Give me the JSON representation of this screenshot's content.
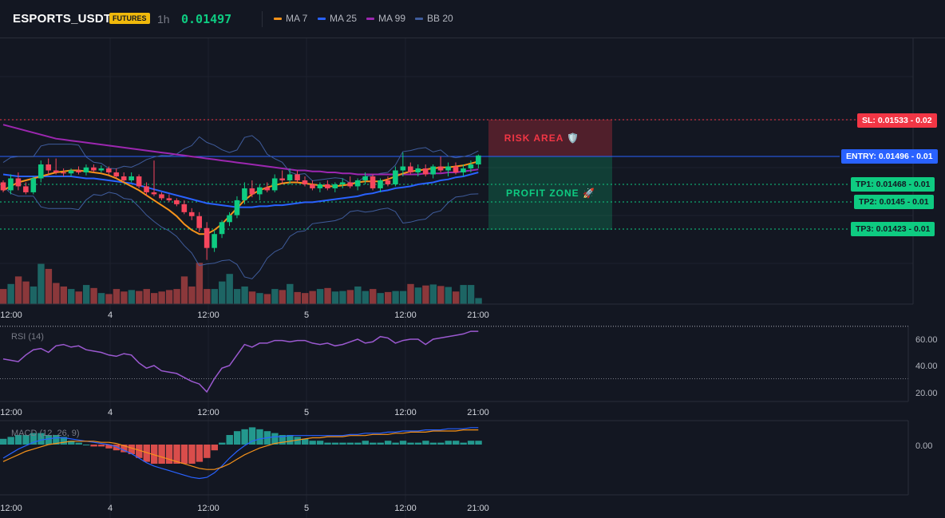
{
  "header": {
    "symbol": "ESPORTS_USDT",
    "badge": "FUTURES",
    "timeframe": "1h",
    "price": "0.01497",
    "legend": [
      {
        "label": "MA 7",
        "color": "#f7931a"
      },
      {
        "label": "MA 25",
        "color": "#2962ff"
      },
      {
        "label": "MA 99",
        "color": "#9c27b0"
      },
      {
        "label": "BB 20",
        "color": "#3f5c9c"
      }
    ]
  },
  "time_axis": [
    "12:00",
    "4",
    "12:00",
    "5",
    "12:00",
    "21:00"
  ],
  "levels": {
    "sl": {
      "label": "SL: 0.01533 - 0.02",
      "color": "#f23645"
    },
    "entry": {
      "label": "ENTRY: 0.01496 - 0.01",
      "color": "#2962ff"
    },
    "tp1": {
      "label": "TP1: 0.01468 - 0.01",
      "color": "#0ecb81"
    },
    "tp2": {
      "label": "TP2: 0.0145 - 0.01",
      "color": "#0ecb81"
    },
    "tp3": {
      "label": "TP3: 0.01423 - 0.01",
      "color": "#0ecb81"
    }
  },
  "zones": {
    "risk": "RISK AREA 🛡️",
    "profit": "PROFIT ZONE 🚀"
  },
  "rsi": {
    "label": "RSI (14)",
    "ticks": [
      "60.00",
      "40.00",
      "20.00"
    ]
  },
  "macd": {
    "label": "MACD (12, 26, 9)",
    "ticks": [
      "0.00"
    ]
  },
  "chart_data": {
    "type": "candlestick",
    "price_range": [
      0.0138,
      0.0155
    ],
    "candles": [
      [
        0.0147,
        0.01472,
        0.0146,
        0.01462
      ],
      [
        0.01462,
        0.01478,
        0.01458,
        0.01474
      ],
      [
        0.01474,
        0.0148,
        0.01462,
        0.01466
      ],
      [
        0.01466,
        0.0147,
        0.01458,
        0.0146
      ],
      [
        0.0146,
        0.01476,
        0.01458,
        0.01474
      ],
      [
        0.01474,
        0.01492,
        0.0147,
        0.01488
      ],
      [
        0.01488,
        0.01494,
        0.01478,
        0.01482
      ],
      [
        0.01482,
        0.01494,
        0.01478,
        0.0148
      ],
      [
        0.0148,
        0.01484,
        0.01476,
        0.01479
      ],
      [
        0.01479,
        0.01484,
        0.01476,
        0.01482
      ],
      [
        0.01482,
        0.01486,
        0.01478,
        0.0148
      ],
      [
        0.0148,
        0.01488,
        0.01477,
        0.01485
      ],
      [
        0.01485,
        0.01488,
        0.0148,
        0.01482
      ],
      [
        0.01482,
        0.01487,
        0.0148,
        0.01484
      ],
      [
        0.01484,
        0.01486,
        0.01478,
        0.0148
      ],
      [
        0.0148,
        0.01484,
        0.01474,
        0.01476
      ],
      [
        0.01476,
        0.0148,
        0.0147,
        0.01472
      ],
      [
        0.01472,
        0.0148,
        0.0147,
        0.01476
      ],
      [
        0.01476,
        0.01478,
        0.01464,
        0.01466
      ],
      [
        0.01466,
        0.0147,
        0.01456,
        0.0146
      ],
      [
        0.0146,
        0.01492,
        0.01456,
        0.01458
      ],
      [
        0.01458,
        0.0146,
        0.01452,
        0.01454
      ],
      [
        0.01454,
        0.01458,
        0.0145,
        0.01452
      ],
      [
        0.01452,
        0.01454,
        0.01446,
        0.01448
      ],
      [
        0.01448,
        0.01452,
        0.01438,
        0.0144
      ],
      [
        0.0144,
        0.01444,
        0.01432,
        0.01436
      ],
      [
        0.01436,
        0.0144,
        0.0142,
        0.01424
      ],
      [
        0.01424,
        0.0143,
        0.01392,
        0.01404
      ],
      [
        0.01404,
        0.01422,
        0.014,
        0.01418
      ],
      [
        0.01418,
        0.01432,
        0.01414,
        0.0143
      ],
      [
        0.0143,
        0.0144,
        0.01426,
        0.01437
      ],
      [
        0.01437,
        0.01456,
        0.01434,
        0.01452
      ],
      [
        0.01452,
        0.0147,
        0.01448,
        0.01464
      ],
      [
        0.01464,
        0.01472,
        0.01455,
        0.01458
      ],
      [
        0.01458,
        0.01468,
        0.01452,
        0.01465
      ],
      [
        0.01465,
        0.0147,
        0.0146,
        0.01462
      ],
      [
        0.01462,
        0.01478,
        0.0146,
        0.01474
      ],
      [
        0.01474,
        0.01482,
        0.01468,
        0.01472
      ],
      [
        0.01472,
        0.01484,
        0.01468,
        0.01478
      ],
      [
        0.01478,
        0.01482,
        0.0147,
        0.01472
      ],
      [
        0.01472,
        0.01476,
        0.01466,
        0.01468
      ],
      [
        0.01468,
        0.01472,
        0.01462,
        0.01464
      ],
      [
        0.01464,
        0.0147,
        0.0146,
        0.01468
      ],
      [
        0.01468,
        0.01472,
        0.01462,
        0.01464
      ],
      [
        0.01464,
        0.0147,
        0.0146,
        0.01468
      ],
      [
        0.01468,
        0.01474,
        0.01464,
        0.0147
      ],
      [
        0.0147,
        0.01476,
        0.01464,
        0.01466
      ],
      [
        0.01466,
        0.01474,
        0.01462,
        0.01472
      ],
      [
        0.01472,
        0.0148,
        0.01468,
        0.01476
      ],
      [
        0.01476,
        0.01478,
        0.01462,
        0.01464
      ],
      [
        0.01464,
        0.01474,
        0.0146,
        0.01472
      ],
      [
        0.01472,
        0.01476,
        0.01466,
        0.01468
      ],
      [
        0.01468,
        0.01486,
        0.01466,
        0.01482
      ],
      [
        0.01482,
        0.015,
        0.01476,
        0.01486
      ],
      [
        0.01486,
        0.0149,
        0.01478,
        0.0148
      ],
      [
        0.0148,
        0.01488,
        0.01476,
        0.01484
      ],
      [
        0.01484,
        0.01488,
        0.01476,
        0.01478
      ],
      [
        0.01478,
        0.01488,
        0.01474,
        0.01486
      ],
      [
        0.01486,
        0.01496,
        0.0148,
        0.01482
      ],
      [
        0.01482,
        0.0149,
        0.01476,
        0.01486
      ],
      [
        0.01486,
        0.0149,
        0.01478,
        0.0148
      ],
      [
        0.0148,
        0.01488,
        0.01476,
        0.01484
      ],
      [
        0.01484,
        0.01492,
        0.0148,
        0.01488
      ],
      [
        0.01488,
        0.01498,
        0.01484,
        0.01497
      ]
    ],
    "volume": [
      30,
      40,
      55,
      45,
      35,
      80,
      70,
      42,
      35,
      30,
      25,
      38,
      32,
      22,
      20,
      30,
      25,
      28,
      26,
      30,
      22,
      25,
      28,
      30,
      55,
      35,
      82,
      30,
      30,
      45,
      60,
      30,
      35,
      25,
      22,
      20,
      30,
      28,
      40,
      24,
      22,
      26,
      30,
      32,
      25,
      26,
      28,
      35,
      26,
      30,
      22,
      24,
      26,
      26,
      40,
      33,
      37,
      39,
      36,
      34,
      25,
      38,
      38,
      12
    ],
    "volume_max": 100,
    "ma7": [
      0.01462,
      0.01466,
      0.0147,
      0.01472,
      0.01474,
      0.01476,
      0.01478,
      0.0148,
      0.01481,
      0.01482,
      0.01482,
      0.01481,
      0.0148,
      0.01479,
      0.01477,
      0.01474,
      0.0147,
      0.01466,
      0.01462,
      0.01457,
      0.01452,
      0.01447,
      0.01442,
      0.01436,
      0.01428,
      0.01422,
      0.01418,
      0.01418,
      0.01422,
      0.01428,
      0.01436,
      0.01444,
      0.01452,
      0.01458,
      0.01462,
      0.01465,
      0.01467,
      0.01469,
      0.0147,
      0.0147,
      0.01469,
      0.01468,
      0.01467,
      0.01466,
      0.01466,
      0.01467,
      0.01468,
      0.0147,
      0.01471,
      0.01471,
      0.01471,
      0.01473,
      0.01476,
      0.01479,
      0.01481,
      0.01482,
      0.01483,
      0.01484,
      0.01485,
      0.01485,
      0.01486,
      0.01487,
      0.01489,
      0.01491
    ],
    "ma25": [
      0.01478,
      0.01477,
      0.01476,
      0.01476,
      0.01476,
      0.01476,
      0.01476,
      0.01476,
      0.01476,
      0.01476,
      0.01475,
      0.01474,
      0.01474,
      0.01473,
      0.01472,
      0.01471,
      0.0147,
      0.01469,
      0.01467,
      0.01465,
      0.01463,
      0.01461,
      0.01459,
      0.01457,
      0.01455,
      0.01453,
      0.01451,
      0.01449,
      0.01448,
      0.01447,
      0.01446,
      0.01445,
      0.01445,
      0.01445,
      0.01446,
      0.01446,
      0.01447,
      0.01447,
      0.01448,
      0.01449,
      0.0145,
      0.0145,
      0.01451,
      0.01452,
      0.01453,
      0.01454,
      0.01455,
      0.01456,
      0.01458,
      0.01459,
      0.01461,
      0.01462,
      0.01464,
      0.01465,
      0.01466,
      0.01468,
      0.01469,
      0.0147,
      0.01472,
      0.01473,
      0.01475,
      0.01476,
      0.01478,
      0.0148
    ],
    "ma99": [
      0.01528,
      0.01526,
      0.01524,
      0.01522,
      0.0152,
      0.01518,
      0.01516,
      0.01514,
      0.01513,
      0.01512,
      0.01511,
      0.0151,
      0.01509,
      0.01508,
      0.01507,
      0.01506,
      0.01505,
      0.01504,
      0.01503,
      0.01502,
      0.01501,
      0.015,
      0.01499,
      0.01498,
      0.01497,
      0.01496,
      0.01495,
      0.01494,
      0.01493,
      0.01492,
      0.01491,
      0.0149,
      0.01489,
      0.01488,
      0.01487,
      0.01486,
      0.01485,
      0.01484,
      0.01483,
      0.01482,
      0.01482,
      0.01481,
      0.01481,
      0.0148,
      0.0148,
      0.01479,
      0.01479,
      0.01478,
      0.01478,
      0.01478,
      0.01478,
      0.01478,
      0.01478,
      0.01478,
      0.01478,
      0.01478,
      0.01479,
      0.01479,
      0.01479,
      0.0148,
      0.0148,
      0.01481,
      0.01482,
      0.01483
    ],
    "rsi": [
      45,
      44,
      43,
      48,
      52,
      53,
      50,
      55,
      56,
      54,
      55,
      52,
      51,
      50,
      48,
      47,
      49,
      48,
      42,
      38,
      40,
      36,
      35,
      34,
      31,
      28,
      26,
      20,
      30,
      38,
      40,
      48,
      56,
      54,
      57,
      57,
      59,
      59,
      58,
      59,
      59,
      57,
      56,
      57,
      55,
      56,
      58,
      60,
      57,
      58,
      62,
      61,
      57,
      59,
      60,
      60,
      56,
      60,
      61,
      62,
      63,
      64,
      66,
      66
    ],
    "macd": [
      -0.00012,
      -8e-05,
      -4e-05,
      -1e-05,
      2e-05,
      4e-05,
      5e-05,
      6e-05,
      6e-05,
      5e-05,
      4e-05,
      3e-05,
      2e-05,
      1e-05,
      0.0,
      -2e-05,
      -5e-05,
      -8e-05,
      -0.00012,
      -0.00016,
      -0.00019,
      -0.00021,
      -0.00023,
      -0.00025,
      -0.00027,
      -0.00029,
      -0.0003,
      -0.00029,
      -0.00025,
      -0.00019,
      -0.00012,
      -6e-05,
      -1e-05,
      3e-05,
      5e-05,
      6e-05,
      7e-05,
      7e-05,
      8e-05,
      8e-05,
      8e-05,
      8e-05,
      8e-05,
      8e-05,
      8e-05,
      8e-05,
      9e-05,
      9e-05,
      0.0001,
      0.0001,
      0.0001,
      0.00011,
      0.00011,
      0.00012,
      0.00012,
      0.00012,
      0.00013,
      0.00013,
      0.00013,
      0.00014,
      0.00014,
      0.00014,
      0.00015,
      0.00015
    ],
    "signal": [
      -0.00015,
      -0.00012,
      -9e-05,
      -6e-05,
      -4e-05,
      -2e-05,
      0.0,
      1e-05,
      2e-05,
      3e-05,
      3e-05,
      3e-05,
      3e-05,
      2e-05,
      2e-05,
      1e-05,
      -1e-05,
      -3e-05,
      -5e-05,
      -7e-05,
      -9e-05,
      -0.00011,
      -0.00013,
      -0.00015,
      -0.00017,
      -0.00019,
      -0.00021,
      -0.00022,
      -0.00022,
      -0.0002,
      -0.00017,
      -0.00013,
      -9e-05,
      -6e-05,
      -3e-05,
      -1e-05,
      1e-05,
      2e-05,
      3e-05,
      4e-05,
      5e-05,
      6e-05,
      6e-05,
      7e-05,
      7e-05,
      7e-05,
      8e-05,
      8e-05,
      8e-05,
      9e-05,
      9e-05,
      9e-05,
      0.0001,
      0.0001,
      0.00011,
      0.00011,
      0.00011,
      0.00012,
      0.00012,
      0.00012,
      0.00012,
      0.00013,
      0.00013,
      0.00013
    ]
  }
}
